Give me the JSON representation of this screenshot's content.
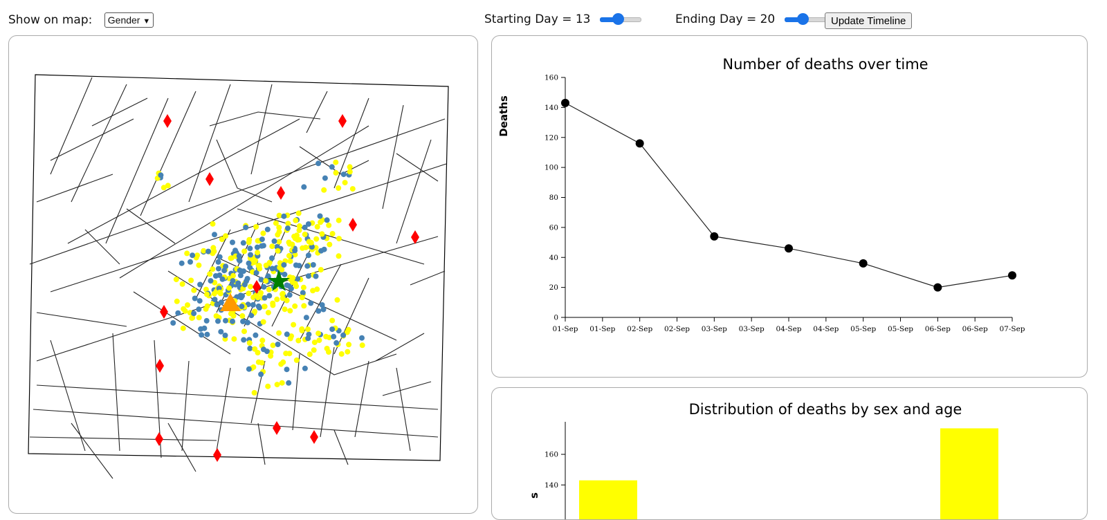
{
  "controls": {
    "show_on_map_label": "Show on map:",
    "show_on_map_value": "Gender",
    "starting_day_label": "Starting Day = 13",
    "starting_day_value": 13,
    "ending_day_label": "Ending Day = 20",
    "ending_day_value": 20,
    "update_button_label": "Update Timeline"
  },
  "colors": {
    "male": "#4682b4",
    "female": "#ffff00",
    "pump": "#ff0000",
    "brewery": "#ff9900",
    "workhouse": "#008000",
    "slider_accent": "#1a73e8"
  },
  "map": {
    "legend_icons": [
      "pump-marker-icon",
      "brewery-triangle-icon",
      "workhouse-star-icon"
    ]
  },
  "chart_data": [
    {
      "type": "line",
      "title": "Number of deaths over time",
      "ylabel": "Deaths",
      "xlabel": "",
      "x_ticks": [
        "01-Sep",
        "01-Sep",
        "02-Sep",
        "02-Sep",
        "03-Sep",
        "03-Sep",
        "04-Sep",
        "04-Sep",
        "05-Sep",
        "05-Sep",
        "06-Sep",
        "06-Sep",
        "07-Sep"
      ],
      "ylim": [
        0,
        160
      ],
      "y_ticks": [
        0,
        20,
        40,
        60,
        80,
        100,
        120,
        140,
        160
      ],
      "x": [
        "01-Sep",
        "02-Sep",
        "03-Sep",
        "04-Sep",
        "05-Sep",
        "06-Sep",
        "07-Sep"
      ],
      "values": [
        143,
        116,
        54,
        46,
        36,
        20,
        28
      ]
    },
    {
      "type": "bar",
      "title": "Distribution of deaths by sex and age",
      "y_ticks_visible": [
        140,
        160
      ],
      "ylim": [
        0,
        180
      ],
      "bars": [
        {
          "value": 143,
          "color": "#ffff00"
        },
        {
          "value": 177,
          "color": "#ffff00"
        }
      ]
    }
  ]
}
